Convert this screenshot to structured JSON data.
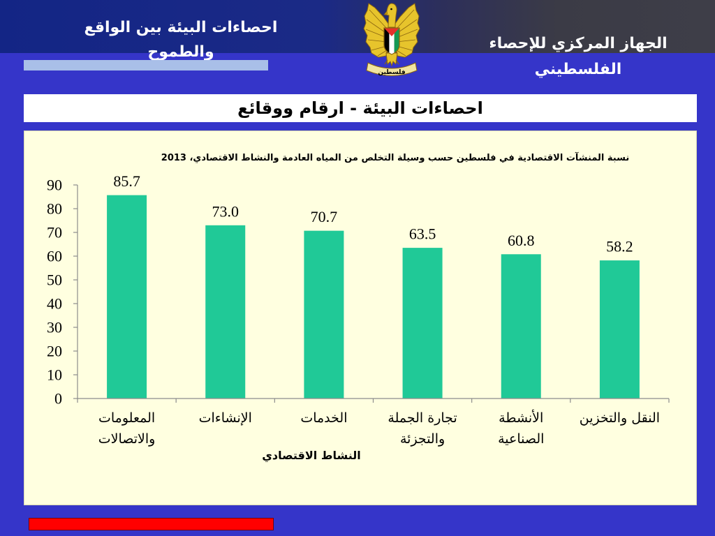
{
  "header": {
    "left_title": "احصاءات البيئة بين الواقع\nوالطموح",
    "right_title": "الجهاز المركزي للإحصاء\nالفلسطيني",
    "emblem_text": "فلسطين"
  },
  "slide_title": "احصاءات البيئة - ارقام ووقائع",
  "colors": {
    "background": "#3535c9",
    "header_band_left": "#132585",
    "header_band_right": "#3e3e48",
    "accent_bar": "#a9bfe8",
    "chart_panel": "#ffffe0",
    "footer_bar": "#ff0000"
  },
  "chart_data": {
    "type": "bar",
    "title": "نسبة المنشآت الاقتصادية في فلسطين حسب وسيلة التخلص من المياه العادمة والنشاط الاقتصادي، 2013",
    "xlabel": "النشاط الاقتصادي",
    "categories": [
      "المعلومات\nوالاتصالات",
      "الإنشاءات",
      "الخدمات",
      "تجارة الجملة\nوالتجزئة",
      "الأنشطة\nالصناعية",
      "النقل والتخزين"
    ],
    "values": [
      85.7,
      73.0,
      70.7,
      63.5,
      60.8,
      58.2
    ],
    "ylim": [
      0,
      90
    ],
    "yticks": [
      0,
      10,
      20,
      30,
      40,
      50,
      60,
      70,
      80,
      90
    ],
    "grid": false,
    "legend": "none",
    "data_labels": true,
    "bar_color": "#20c997",
    "axis_color": "#8c8c8c"
  }
}
